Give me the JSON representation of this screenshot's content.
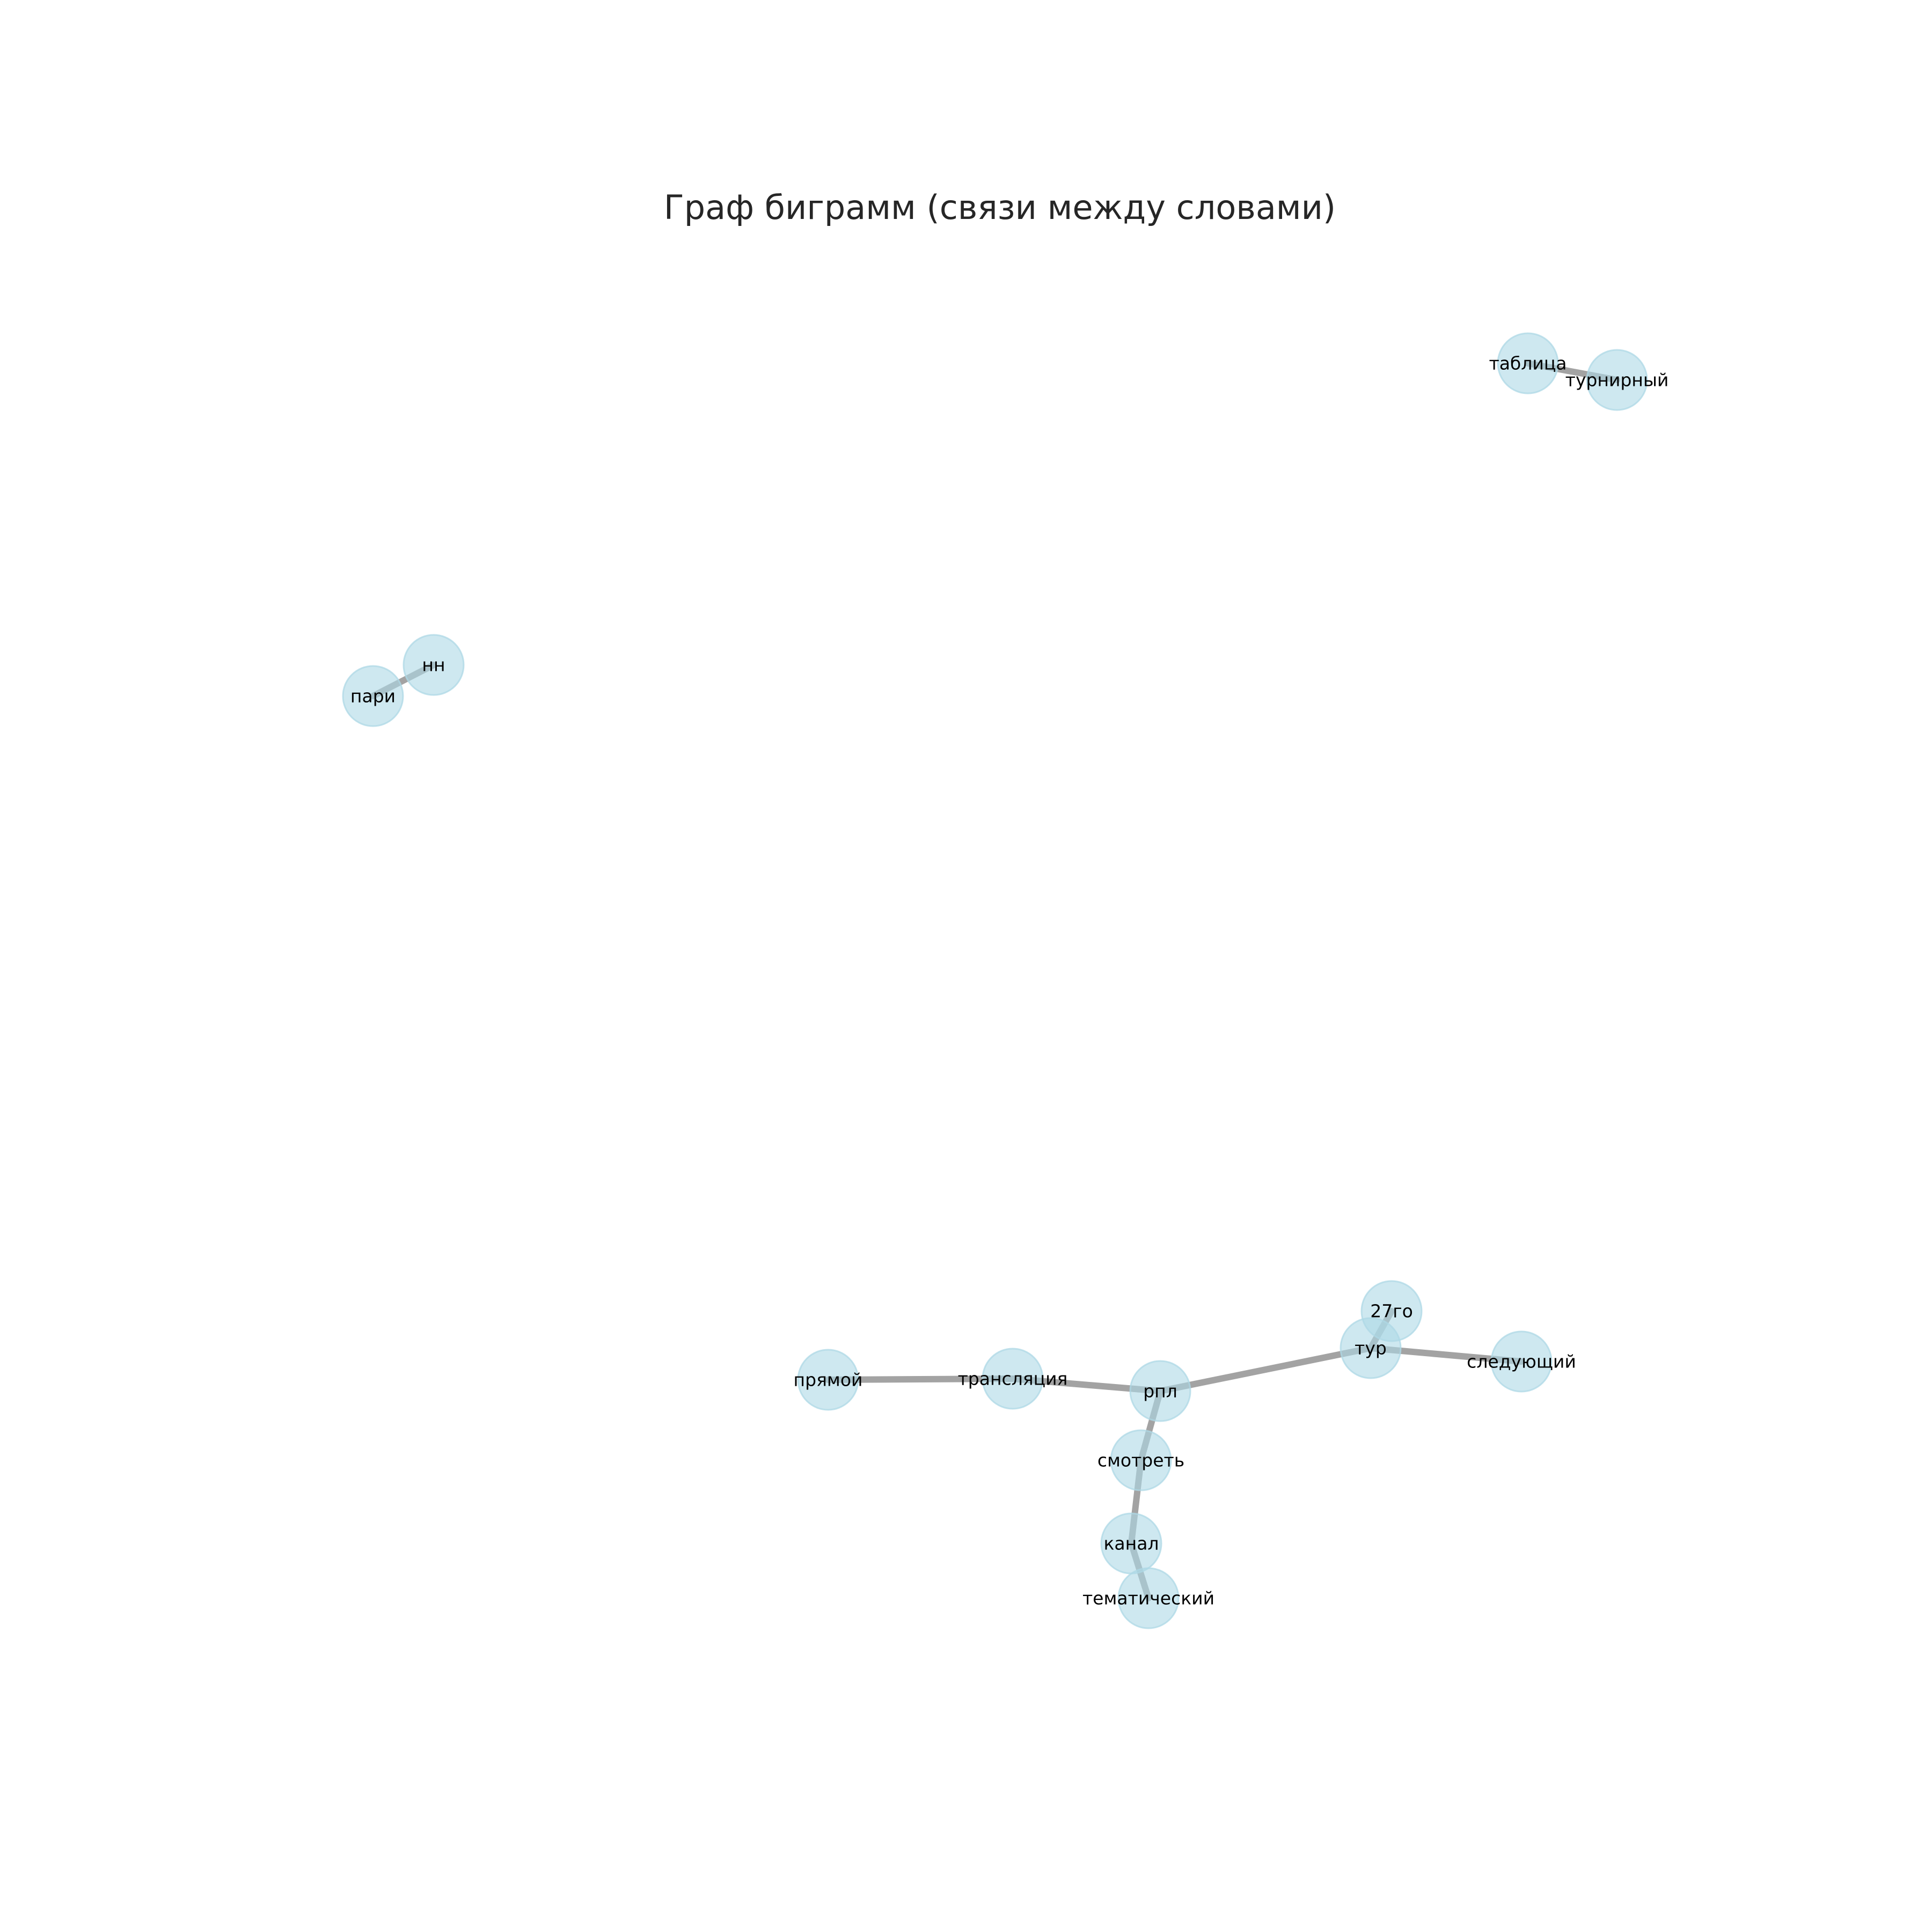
{
  "title": "Граф биграмм (связи между словами)",
  "colors": {
    "node": "#add8e6",
    "edge": "#a3a3a3",
    "background": "#ffffff",
    "text": "#000000"
  },
  "nodes": [
    {
      "id": "таблица",
      "label": "таблица"
    },
    {
      "id": "турнирный",
      "label": "турнирный"
    },
    {
      "id": "нн",
      "label": "нн"
    },
    {
      "id": "пари",
      "label": "пари"
    },
    {
      "id": "27го",
      "label": "27го"
    },
    {
      "id": "тур",
      "label": "тур"
    },
    {
      "id": "следующий",
      "label": "следующий"
    },
    {
      "id": "прямой",
      "label": "прямой"
    },
    {
      "id": "трансляция",
      "label": "трансляция"
    },
    {
      "id": "рпл",
      "label": "рпл"
    },
    {
      "id": "смотреть",
      "label": "смотреть"
    },
    {
      "id": "канал",
      "label": "канал"
    },
    {
      "id": "тематический",
      "label": "тематический"
    }
  ],
  "edges": [
    {
      "source": "таблица",
      "target": "турнирный"
    },
    {
      "source": "пари",
      "target": "нн"
    },
    {
      "source": "прямой",
      "target": "трансляция"
    },
    {
      "source": "трансляция",
      "target": "рпл"
    },
    {
      "source": "рпл",
      "target": "тур"
    },
    {
      "source": "тур",
      "target": "27го"
    },
    {
      "source": "тур",
      "target": "следующий"
    },
    {
      "source": "рпл",
      "target": "смотреть"
    },
    {
      "source": "смотреть",
      "target": "канал"
    },
    {
      "source": "канал",
      "target": "тематический"
    }
  ]
}
